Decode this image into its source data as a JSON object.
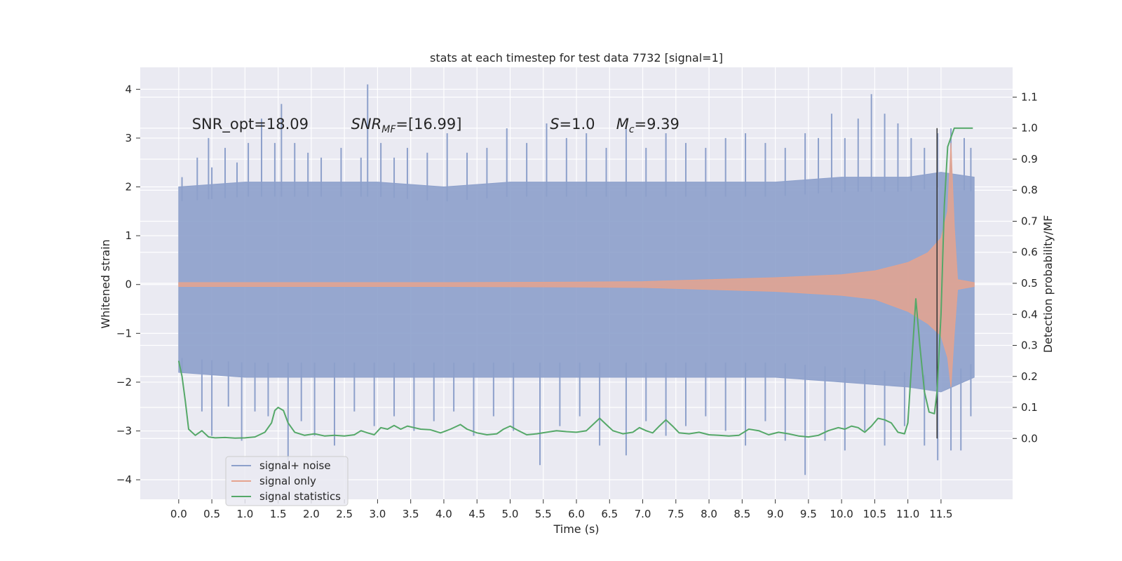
{
  "chart_data": {
    "type": "line",
    "title": "stats at each timestep for test data 7732 [signal=1]",
    "xlabel": "Time (s)",
    "ylabel_left": "Whitened strain",
    "ylabel_right": "Detection probability/MF",
    "xlim": [
      -0.58,
      12.58
    ],
    "ylim_left": [
      -4.4,
      4.45
    ],
    "ylim_right": [
      -0.196,
      1.196
    ],
    "x_ticks": [
      "0.0",
      "0.5",
      "1.0",
      "1.5",
      "2.0",
      "2.5",
      "3.0",
      "3.5",
      "4.0",
      "4.5",
      "5.0",
      "5.5",
      "6.0",
      "6.5",
      "7.0",
      "7.5",
      "8.0",
      "8.5",
      "9.0",
      "9.5",
      "10.0",
      "10.5",
      "11.0",
      "11.5"
    ],
    "y_ticks_left": [
      "4",
      "3",
      "2",
      "1",
      "0",
      "−1",
      "−2",
      "−3",
      "−4"
    ],
    "y_ticks_right": [
      "1.1",
      "1.0",
      "0.9",
      "0.8",
      "0.7",
      "0.6",
      "0.5",
      "0.4",
      "0.3",
      "0.2",
      "0.1",
      "0.0"
    ],
    "grid": true,
    "legend_position": "lower-left",
    "annotations": [
      {
        "x": 0.2,
        "text": "SNR_opt=18.09"
      },
      {
        "x": 2.6,
        "text": "SNR_MF=[16.99]"
      },
      {
        "x": 5.6,
        "text": "S=1.0"
      },
      {
        "x": 6.6,
        "text": "M_c=9.39"
      }
    ],
    "series": [
      {
        "name": "signal+ noise",
        "color": "#8da0cb",
        "axis": "left",
        "envelope_x": [
          0.0,
          1.0,
          2.0,
          3.0,
          4.0,
          5.0,
          6.0,
          7.0,
          8.0,
          9.0,
          10.0,
          11.0,
          11.5,
          12.0
        ],
        "envelope_upper": [
          2.0,
          2.1,
          2.1,
          2.1,
          2.0,
          2.1,
          2.1,
          2.1,
          2.1,
          2.1,
          2.2,
          2.2,
          2.3,
          2.2
        ],
        "envelope_lower": [
          -1.8,
          -1.9,
          -1.9,
          -1.9,
          -1.9,
          -1.9,
          -1.9,
          -1.9,
          -1.9,
          -1.9,
          -2.0,
          -2.1,
          -2.2,
          -1.9
        ],
        "spikes_up": [
          [
            0.05,
            2.2
          ],
          [
            0.28,
            2.6
          ],
          [
            0.45,
            3.0
          ],
          [
            0.5,
            2.4
          ],
          [
            0.7,
            2.8
          ],
          [
            0.88,
            2.5
          ],
          [
            1.05,
            2.9
          ],
          [
            1.25,
            3.4
          ],
          [
            1.45,
            2.9
          ],
          [
            1.55,
            3.7
          ],
          [
            1.75,
            2.9
          ],
          [
            1.95,
            2.7
          ],
          [
            2.15,
            2.6
          ],
          [
            2.45,
            2.8
          ],
          [
            2.75,
            2.6
          ],
          [
            2.85,
            4.1
          ],
          [
            3.05,
            2.9
          ],
          [
            3.25,
            2.6
          ],
          [
            3.45,
            2.8
          ],
          [
            3.75,
            2.7
          ],
          [
            4.05,
            3.1
          ],
          [
            4.35,
            2.7
          ],
          [
            4.65,
            2.8
          ],
          [
            4.95,
            3.2
          ],
          [
            5.25,
            2.9
          ],
          [
            5.55,
            3.3
          ],
          [
            5.85,
            3.0
          ],
          [
            6.15,
            3.1
          ],
          [
            6.45,
            2.8
          ],
          [
            6.75,
            3.2
          ],
          [
            7.05,
            2.8
          ],
          [
            7.35,
            3.1
          ],
          [
            7.65,
            2.9
          ],
          [
            7.95,
            2.8
          ],
          [
            8.25,
            3.0
          ],
          [
            8.55,
            3.1
          ],
          [
            8.85,
            2.9
          ],
          [
            9.15,
            2.8
          ],
          [
            9.45,
            3.1
          ],
          [
            9.65,
            3.0
          ],
          [
            9.85,
            3.5
          ],
          [
            10.05,
            3.0
          ],
          [
            10.25,
            3.4
          ],
          [
            10.45,
            3.9
          ],
          [
            10.65,
            3.5
          ],
          [
            10.85,
            3.3
          ],
          [
            11.05,
            3.0
          ],
          [
            11.25,
            2.8
          ],
          [
            11.45,
            3.1
          ],
          [
            11.65,
            3.2
          ],
          [
            11.85,
            3.0
          ],
          [
            11.95,
            2.8
          ]
        ],
        "spikes_down": [
          [
            0.05,
            -1.8
          ],
          [
            0.35,
            -2.6
          ],
          [
            0.5,
            -3.1
          ],
          [
            0.75,
            -2.5
          ],
          [
            0.95,
            -3.2
          ],
          [
            1.15,
            -2.6
          ],
          [
            1.35,
            -2.7
          ],
          [
            1.65,
            -3.6
          ],
          [
            1.85,
            -2.8
          ],
          [
            2.05,
            -3.1
          ],
          [
            2.35,
            -3.3
          ],
          [
            2.65,
            -2.6
          ],
          [
            2.95,
            -2.9
          ],
          [
            3.25,
            -2.7
          ],
          [
            3.55,
            -3.0
          ],
          [
            3.85,
            -2.8
          ],
          [
            4.15,
            -2.6
          ],
          [
            4.45,
            -3.1
          ],
          [
            4.75,
            -2.7
          ],
          [
            5.05,
            -3.0
          ],
          [
            5.45,
            -3.7
          ],
          [
            5.75,
            -2.9
          ],
          [
            6.05,
            -2.7
          ],
          [
            6.35,
            -3.3
          ],
          [
            6.75,
            -3.5
          ],
          [
            7.05,
            -2.8
          ],
          [
            7.35,
            -3.1
          ],
          [
            7.65,
            -2.9
          ],
          [
            7.95,
            -2.7
          ],
          [
            8.25,
            -3.0
          ],
          [
            8.55,
            -3.3
          ],
          [
            8.85,
            -2.8
          ],
          [
            9.15,
            -3.2
          ],
          [
            9.45,
            -3.9
          ],
          [
            9.75,
            -3.2
          ],
          [
            10.05,
            -3.4
          ],
          [
            10.35,
            -3.0
          ],
          [
            10.65,
            -3.3
          ],
          [
            10.95,
            -2.9
          ],
          [
            11.25,
            -3.3
          ],
          [
            11.45,
            -3.6
          ],
          [
            11.65,
            -3.4
          ],
          [
            11.8,
            -3.4
          ],
          [
            11.95,
            -2.7
          ]
        ]
      },
      {
        "name": "signal only",
        "color": "#e5a38e",
        "axis": "left",
        "envelope_x": [
          0.0,
          2.0,
          4.0,
          6.0,
          7.0,
          8.0,
          9.0,
          10.0,
          10.5,
          11.0,
          11.3,
          11.5,
          11.6,
          11.65,
          11.7,
          11.75,
          12.0
        ],
        "envelope_upper": [
          0.04,
          0.04,
          0.04,
          0.05,
          0.06,
          0.1,
          0.14,
          0.2,
          0.28,
          0.45,
          0.65,
          0.95,
          1.5,
          2.9,
          1.2,
          0.1,
          0.04
        ],
        "envelope_lower": [
          -0.04,
          -0.04,
          -0.04,
          -0.05,
          -0.06,
          -0.1,
          -0.14,
          -0.22,
          -0.3,
          -0.55,
          -0.8,
          -1.05,
          -1.5,
          -2.1,
          -1.0,
          -0.1,
          -0.04
        ]
      },
      {
        "name": "signal statistics",
        "color": "#55a868",
        "axis": "right",
        "x": [
          0.0,
          0.05,
          0.1,
          0.15,
          0.25,
          0.35,
          0.45,
          0.55,
          0.7,
          0.85,
          1.0,
          1.15,
          1.3,
          1.4,
          1.45,
          1.5,
          1.58,
          1.65,
          1.75,
          1.9,
          2.05,
          2.2,
          2.35,
          2.5,
          2.65,
          2.75,
          2.85,
          2.95,
          3.05,
          3.15,
          3.25,
          3.35,
          3.45,
          3.55,
          3.65,
          3.8,
          3.95,
          4.1,
          4.25,
          4.35,
          4.5,
          4.65,
          4.8,
          4.9,
          5.0,
          5.1,
          5.25,
          5.4,
          5.55,
          5.7,
          5.85,
          6.0,
          6.15,
          6.25,
          6.35,
          6.45,
          6.55,
          6.7,
          6.85,
          6.95,
          7.05,
          7.15,
          7.25,
          7.35,
          7.45,
          7.55,
          7.7,
          7.85,
          8.0,
          8.15,
          8.3,
          8.45,
          8.6,
          8.75,
          8.9,
          9.05,
          9.2,
          9.35,
          9.5,
          9.65,
          9.8,
          9.95,
          10.05,
          10.15,
          10.25,
          10.35,
          10.45,
          10.55,
          10.65,
          10.75,
          10.85,
          10.95,
          11.0,
          11.06,
          11.12,
          11.18,
          11.25,
          11.32,
          11.4,
          11.44,
          11.5,
          11.55,
          11.6,
          11.7,
          11.85,
          11.98
        ],
        "values": [
          0.25,
          0.2,
          0.12,
          0.03,
          0.01,
          0.025,
          0.005,
          0.002,
          0.003,
          0.001,
          0.002,
          0.005,
          0.02,
          0.05,
          0.09,
          0.1,
          0.09,
          0.05,
          0.02,
          0.01,
          0.015,
          0.008,
          0.01,
          0.008,
          0.012,
          0.025,
          0.018,
          0.012,
          0.035,
          0.03,
          0.042,
          0.03,
          0.04,
          0.035,
          0.03,
          0.028,
          0.018,
          0.03,
          0.045,
          0.03,
          0.018,
          0.012,
          0.015,
          0.03,
          0.04,
          0.028,
          0.012,
          0.015,
          0.02,
          0.025,
          0.022,
          0.02,
          0.025,
          0.045,
          0.065,
          0.045,
          0.025,
          0.015,
          0.02,
          0.035,
          0.025,
          0.018,
          0.04,
          0.06,
          0.04,
          0.018,
          0.015,
          0.02,
          0.012,
          0.01,
          0.008,
          0.01,
          0.03,
          0.025,
          0.012,
          0.02,
          0.015,
          0.008,
          0.005,
          0.01,
          0.025,
          0.035,
          0.03,
          0.04,
          0.035,
          0.02,
          0.04,
          0.065,
          0.06,
          0.05,
          0.02,
          0.015,
          0.05,
          0.25,
          0.45,
          0.3,
          0.15,
          0.085,
          0.08,
          0.15,
          0.4,
          0.75,
          0.94,
          1.0,
          1.0,
          1.0
        ]
      }
    ],
    "vertical_marker": {
      "x": 11.44,
      "color": "#333333",
      "y_range_right": [
        0.0,
        1.0
      ]
    }
  }
}
